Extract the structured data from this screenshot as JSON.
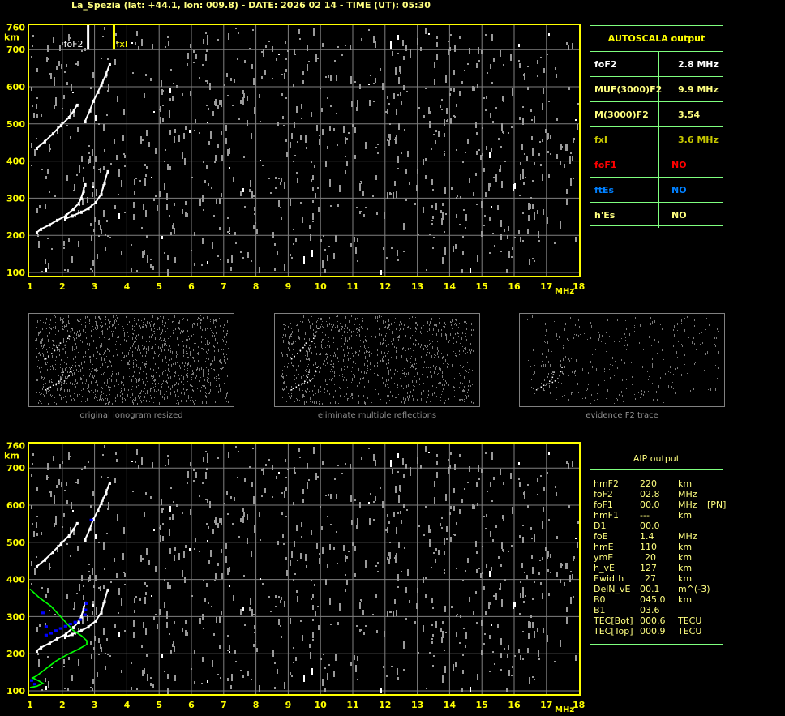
{
  "title": "La_Spezia (lat: +44.1, lon: 009.8) - DATE: 2026 02 14 - TIME (UT): 05:30",
  "colors": {
    "axis": "#ffff00",
    "grid": "#808080",
    "table_border": "#7fff7f",
    "foF1": "#ff0000",
    "ftEs": "#0080ff",
    "profile": "#00ff00",
    "aip_trace": "#0000ff"
  },
  "chart_data": [
    {
      "type": "scatter",
      "name": "upper-ionogram",
      "xlabel": "MHz",
      "ylabel": "km",
      "xlim": [
        1,
        18
      ],
      "ylim": [
        100,
        760
      ],
      "x_ticks": [
        "1",
        "2",
        "3",
        "4",
        "5",
        "6",
        "7",
        "8",
        "9",
        "10",
        "11",
        "12",
        "13",
        "14",
        "15",
        "16",
        "17",
        "18"
      ],
      "y_ticks": [
        "760",
        "700",
        "600",
        "500",
        "400",
        "300",
        "200",
        "100"
      ],
      "grid": true,
      "markers": [
        {
          "label": "foF2",
          "freq": 2.8,
          "color": "#ffffff"
        },
        {
          "label": "fxI",
          "freq": 3.6,
          "color": "#ffff00"
        }
      ],
      "traces": [
        {
          "points": [
            [
              1.2,
              207
            ],
            [
              1.33,
              216
            ],
            [
              1.6,
              228
            ],
            [
              1.83,
              240
            ],
            [
              2.1,
              252
            ],
            [
              2.33,
              270
            ],
            [
              2.5,
              285
            ],
            [
              2.58,
              299
            ],
            [
              2.65,
              318
            ],
            [
              2.7,
              336
            ]
          ]
        },
        {
          "points": [
            [
              2.08,
              244
            ],
            [
              2.3,
              252
            ],
            [
              2.58,
              262
            ],
            [
              2.8,
              272
            ],
            [
              3.03,
              288
            ],
            [
              3.2,
              310
            ],
            [
              3.3,
              340
            ],
            [
              3.4,
              371
            ]
          ]
        },
        {
          "points": [
            [
              1.2,
              434
            ],
            [
              1.45,
              452
            ],
            [
              1.7,
              473
            ],
            [
              1.95,
              495
            ],
            [
              2.2,
              517
            ],
            [
              2.35,
              535
            ],
            [
              2.45,
              550
            ]
          ]
        },
        {
          "points": [
            [
              2.7,
              506
            ],
            [
              2.85,
              535
            ],
            [
              2.96,
              561
            ],
            [
              3.1,
              585
            ],
            [
              3.2,
              604
            ],
            [
              3.35,
              632
            ],
            [
              3.46,
              659
            ]
          ]
        }
      ]
    },
    {
      "type": "scatter",
      "name": "lower-ionogram",
      "xlabel": "MHz",
      "ylabel": "km",
      "xlim": [
        1,
        18
      ],
      "ylim": [
        100,
        760
      ],
      "x_ticks": [
        "1",
        "2",
        "3",
        "4",
        "5",
        "6",
        "7",
        "8",
        "9",
        "10",
        "11",
        "12",
        "13",
        "14",
        "15",
        "16",
        "17",
        "18"
      ],
      "y_ticks": [
        "760",
        "700",
        "600",
        "500",
        "400",
        "300",
        "200",
        "100"
      ],
      "grid": true,
      "profile": [
        [
          1.0,
          374
        ],
        [
          1.3,
          350
        ],
        [
          1.65,
          328
        ],
        [
          2.0,
          295
        ],
        [
          2.33,
          263
        ],
        [
          2.6,
          248
        ],
        [
          2.76,
          235
        ],
        [
          2.76,
          225
        ],
        [
          2.5,
          212
        ],
        [
          2.16,
          198
        ],
        [
          1.8,
          180
        ],
        [
          1.5,
          160
        ],
        [
          1.2,
          140
        ],
        [
          1.08,
          135
        ],
        [
          1.25,
          128
        ],
        [
          1.4,
          120
        ],
        [
          1.2,
          112
        ],
        [
          1.0,
          109
        ]
      ],
      "aip_points": [
        [
          1.5,
          250
        ],
        [
          1.65,
          255
        ],
        [
          1.8,
          262
        ],
        [
          1.95,
          268
        ],
        [
          2.1,
          274
        ],
        [
          2.25,
          280
        ],
        [
          2.4,
          285
        ],
        [
          2.55,
          292
        ],
        [
          2.7,
          305
        ],
        [
          2.72,
          318
        ],
        [
          2.75,
          335
        ],
        [
          1.05,
          128
        ],
        [
          1.15,
          118
        ],
        [
          1.5,
          273
        ],
        [
          1.4,
          310
        ],
        [
          2.9,
          560
        ]
      ]
    }
  ],
  "thumbnails": [
    {
      "caption": "original ionogram resized"
    },
    {
      "caption": "eliminate multiple reflections"
    },
    {
      "caption": "evidence F2 trace"
    }
  ],
  "autoscala": {
    "header": "AUTOSCALA output",
    "rows": [
      {
        "label": "foF2",
        "value": "2.8 MHz",
        "color": "#ffffff"
      },
      {
        "label": "MUF(3000)F2",
        "value": "9.9 MHz",
        "color": "#ffff80"
      },
      {
        "label": "M(3000)F2",
        "value": "3.54",
        "color": "#ffff80"
      },
      {
        "label": "fxI",
        "value": "3.6 MHz",
        "color": "#c8c800"
      },
      {
        "label": "foF1",
        "value": "NO",
        "color": "#ff0000"
      },
      {
        "label": "ftEs",
        "value": "NO",
        "color": "#0080ff"
      },
      {
        "label": "h'Es",
        "value": "NO",
        "color": "#ffff80"
      }
    ]
  },
  "aip": {
    "header": "AIP output",
    "rows": [
      {
        "name": "hmF2",
        "value": "220",
        "unit": "km",
        "extra": ""
      },
      {
        "name": "foF2",
        "value": "02.8",
        "unit": "MHz",
        "extra": ""
      },
      {
        "name": "foF1",
        "value": "00.0",
        "unit": "MHz",
        "extra": "[PN]"
      },
      {
        "name": "hmF1",
        "value": "---",
        "unit": "km",
        "extra": ""
      },
      {
        "name": "D1",
        "value": "00.0",
        "unit": "",
        "extra": ""
      },
      {
        "name": "foE",
        "value": "1.4",
        "unit": "MHz",
        "extra": ""
      },
      {
        "name": "hmE",
        "value": "110",
        "unit": "km",
        "extra": ""
      },
      {
        "name": "ymE",
        "value": "20",
        "unit": "km",
        "extra": ""
      },
      {
        "name": "h_vE",
        "value": "127",
        "unit": "km",
        "extra": ""
      },
      {
        "name": "Ewidth",
        "value": "27",
        "unit": "km",
        "extra": ""
      },
      {
        "name": "DelN_vE",
        "value": "00.1",
        "unit": "m^(-3)",
        "extra": ""
      },
      {
        "name": "B0",
        "value": "045.0",
        "unit": "km",
        "extra": ""
      },
      {
        "name": "B1",
        "value": "03.6",
        "unit": "",
        "extra": ""
      },
      {
        "name": "TEC[Bot]",
        "value": "000.6",
        "unit": "TECU",
        "extra": ""
      },
      {
        "name": "TEC[Top]",
        "value": "000.9",
        "unit": "TECU",
        "extra": ""
      }
    ]
  }
}
